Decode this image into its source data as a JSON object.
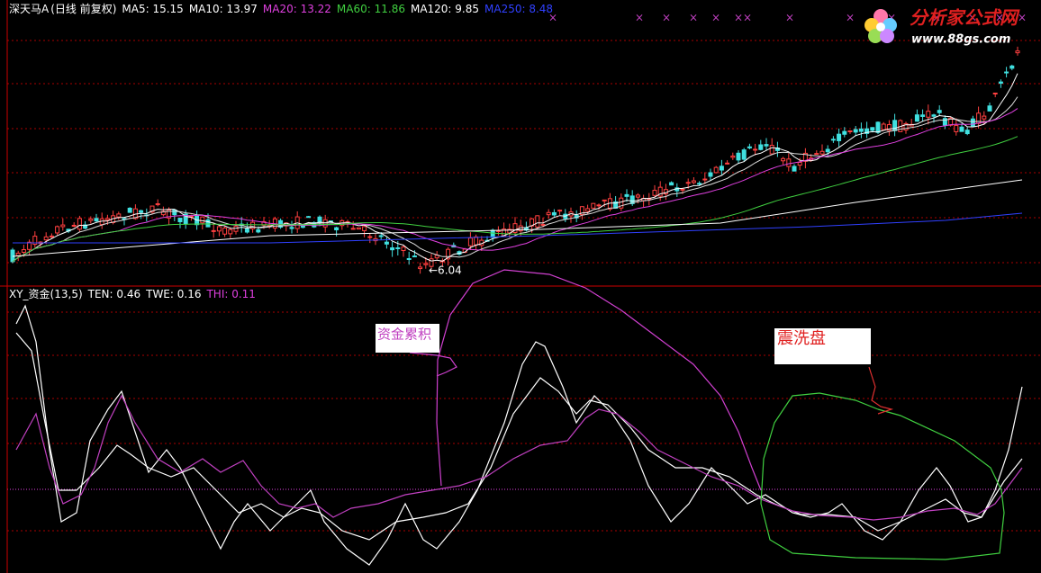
{
  "header": {
    "stock": "深天马A",
    "mode": "(日线 前复权)",
    "ma": [
      "MA5: 15.15",
      "MA10: 13.97",
      "MA20: 13.22",
      "MA60: 11.86",
      "MA120: 9.85",
      "MA250: 8.48"
    ]
  },
  "low_label": "←6.04",
  "indicator": {
    "name": "XY_资金(13,5)",
    "lines": [
      "TEN: 0.46",
      "TWE: 0.16",
      "THI: 0.11"
    ]
  },
  "annotations": [
    "资金累积",
    "震洗盘"
  ],
  "logo": {
    "name": "分析家公式网",
    "url": "www.88gs.com"
  }
}
